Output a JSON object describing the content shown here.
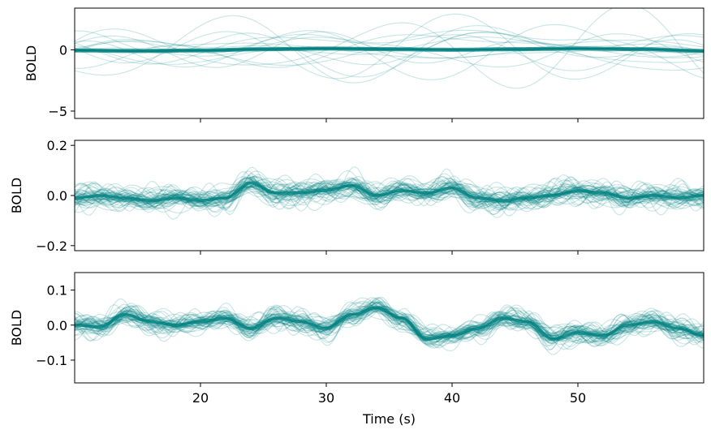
{
  "chart_data": [
    {
      "type": "line",
      "ylabel": "BOLD",
      "xlim": [
        10,
        60
      ],
      "ylim": [
        -5.6,
        3.4
      ],
      "yticks": [
        -5,
        0
      ],
      "ytick_labels": [
        "−5",
        "0"
      ],
      "xticks": [
        20,
        30,
        40,
        50
      ],
      "xtick_labels": [
        "",
        "",
        "",
        ""
      ],
      "series_color": "#008080",
      "series_count": 60,
      "mean_series": {
        "x": [
          10,
          15,
          20,
          25,
          30,
          35,
          40,
          45,
          50,
          55,
          60
        ],
        "y": [
          -0.05,
          -0.1,
          -0.05,
          0.05,
          0.1,
          0.05,
          0.0,
          0.05,
          0.1,
          0.05,
          -0.1
        ]
      }
    },
    {
      "type": "line",
      "ylabel": "BOLD",
      "xlim": [
        10,
        60
      ],
      "ylim": [
        -0.22,
        0.22
      ],
      "yticks": [
        -0.2,
        0.0,
        0.2
      ],
      "ytick_labels": [
        "−0.2",
        "0.0",
        "0.2"
      ],
      "xticks": [
        20,
        30,
        40,
        50
      ],
      "xtick_labels": [
        "",
        "",
        "",
        ""
      ],
      "series_color": "#008080",
      "series_count": 60,
      "mean_series": {
        "x": [
          10,
          12,
          14,
          16,
          18,
          20,
          22,
          24,
          26,
          28,
          30,
          32,
          34,
          36,
          38,
          40,
          42,
          44,
          46,
          48,
          50,
          52,
          54,
          56,
          58,
          60
        ],
        "y": [
          -0.01,
          0.0,
          -0.01,
          -0.02,
          -0.01,
          -0.02,
          -0.01,
          0.05,
          0.01,
          0.01,
          0.02,
          0.04,
          0.0,
          0.02,
          0.01,
          0.03,
          -0.01,
          -0.02,
          -0.01,
          0.0,
          0.02,
          0.01,
          -0.01,
          0.0,
          -0.01,
          0.0
        ]
      }
    },
    {
      "type": "line",
      "ylabel": "BOLD",
      "xlabel": "Time (s)",
      "xlim": [
        10,
        60
      ],
      "ylim": [
        -0.165,
        0.15
      ],
      "yticks": [
        -0.1,
        0.0,
        0.1
      ],
      "ytick_labels": [
        "−0.1",
        "0.0",
        "0.1"
      ],
      "xticks": [
        20,
        30,
        40,
        50
      ],
      "xtick_labels": [
        "20",
        "30",
        "40",
        "50"
      ],
      "series_color": "#008080",
      "series_count": 60,
      "mean_series": {
        "x": [
          10,
          12,
          14,
          16,
          18,
          20,
          22,
          24,
          26,
          28,
          30,
          32,
          34,
          36,
          38,
          40,
          42,
          44,
          46,
          48,
          50,
          52,
          54,
          56,
          58,
          60
        ],
        "y": [
          0.0,
          -0.005,
          0.03,
          0.01,
          0.0,
          0.01,
          0.02,
          -0.01,
          0.02,
          0.01,
          -0.01,
          0.03,
          0.05,
          0.02,
          -0.04,
          -0.03,
          -0.01,
          0.02,
          0.01,
          -0.04,
          -0.02,
          -0.03,
          0.0,
          0.01,
          -0.01,
          -0.03
        ]
      }
    }
  ]
}
